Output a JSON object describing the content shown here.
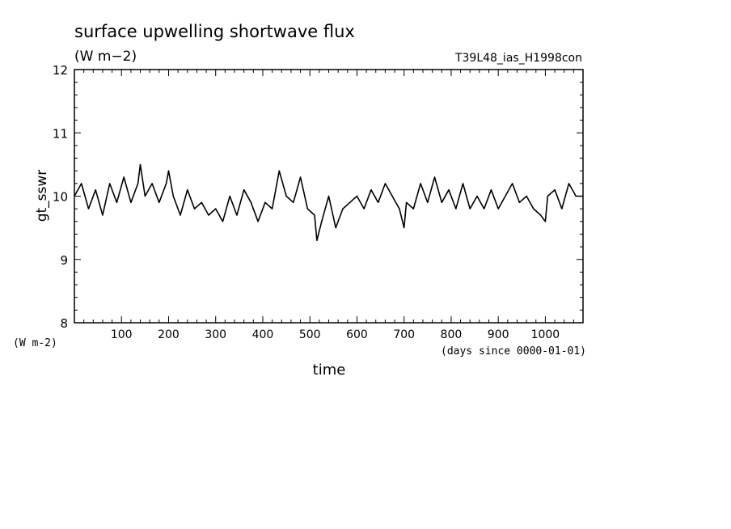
{
  "chart_data": {
    "type": "line",
    "title": "surface upwelling shortwave flux",
    "subtitle": "(W m−2)",
    "run_label": "T39L48_ias_H1998con",
    "xlabel": "time",
    "x_units": "(days since 0000-01-01)",
    "ylabel": "gt_sswr",
    "y_units": "(W m-2)",
    "xlim": [
      0,
      1080
    ],
    "ylim": [
      8,
      12
    ],
    "x_ticks": [
      100,
      200,
      300,
      400,
      500,
      600,
      700,
      800,
      900,
      1000
    ],
    "y_ticks": [
      8,
      9,
      10,
      11,
      12
    ],
    "grid": false,
    "line_color": "#000000",
    "series": [
      {
        "x": [
          0,
          15,
          30,
          45,
          60,
          75,
          90,
          105,
          120,
          135,
          140,
          150,
          165,
          180,
          195,
          200,
          210,
          225,
          240,
          255,
          270,
          285,
          300,
          315,
          330,
          345,
          360,
          375,
          390,
          405,
          420,
          435,
          450,
          465,
          480,
          495,
          510,
          515,
          525,
          540,
          555,
          570,
          585,
          600,
          615,
          630,
          645,
          660,
          675,
          690,
          700,
          705,
          720,
          735,
          750,
          765,
          780,
          795,
          810,
          825,
          840,
          855,
          870,
          885,
          900,
          915,
          930,
          945,
          960,
          975,
          990,
          1000,
          1005,
          1020,
          1035,
          1050,
          1065,
          1080
        ],
        "values": [
          10.0,
          10.2,
          9.8,
          10.1,
          9.7,
          10.2,
          9.9,
          10.3,
          9.9,
          10.2,
          10.5,
          10.0,
          10.2,
          9.9,
          10.2,
          10.4,
          10.0,
          9.7,
          10.1,
          9.8,
          9.9,
          9.7,
          9.8,
          9.6,
          10.0,
          9.7,
          10.1,
          9.9,
          9.6,
          9.9,
          9.8,
          10.4,
          10.0,
          9.9,
          10.3,
          9.8,
          9.7,
          9.3,
          9.6,
          10.0,
          9.5,
          9.8,
          9.9,
          10.0,
          9.8,
          10.1,
          9.9,
          10.2,
          10.0,
          9.8,
          9.5,
          9.9,
          9.8,
          10.2,
          9.9,
          10.3,
          9.9,
          10.1,
          9.8,
          10.2,
          9.8,
          10.0,
          9.8,
          10.1,
          9.8,
          10.0,
          10.2,
          9.9,
          10.0,
          9.8,
          9.7,
          9.6,
          10.0,
          10.1,
          9.8,
          10.2,
          10.0,
          10.0
        ]
      }
    ]
  }
}
